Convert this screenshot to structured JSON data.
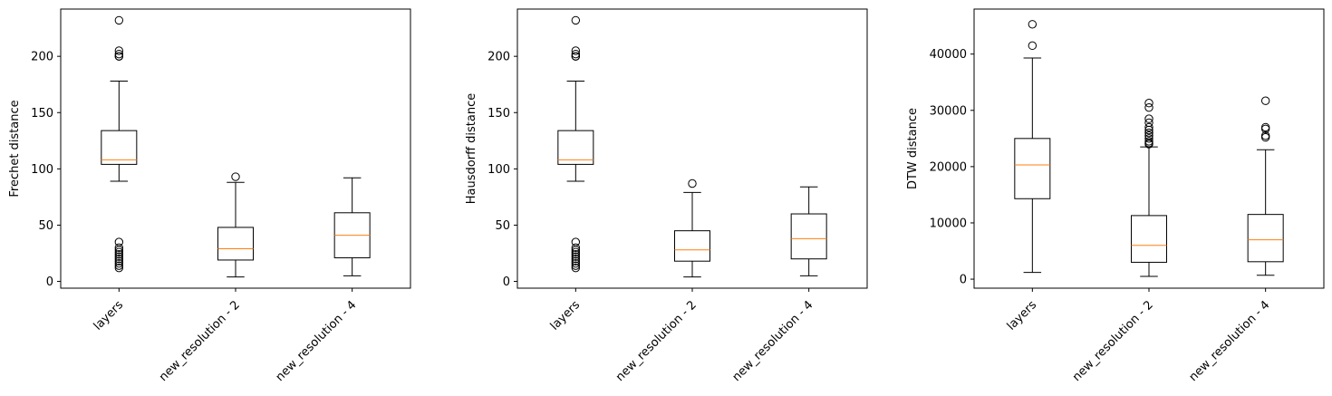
{
  "chart_data": [
    {
      "type": "box",
      "ylabel": "Frechet distance",
      "xlabel": "",
      "title": "",
      "categories": [
        "layers",
        "new_resolution - 2",
        "new_resolution - 4"
      ],
      "ylim": [
        -6,
        242
      ],
      "yticks": [
        0,
        50,
        100,
        150,
        200
      ],
      "grid": false,
      "boxes": [
        {
          "whislo": 89,
          "q1": 104,
          "med": 108,
          "q3": 134,
          "whishi": 178,
          "fliers": [
            232,
            205,
            202,
            200,
            200,
            35,
            30,
            28,
            26,
            24,
            22,
            20,
            18,
            16,
            14,
            12
          ]
        },
        {
          "whislo": 4,
          "q1": 19,
          "med": 29,
          "q3": 48,
          "whishi": 88,
          "fliers": [
            93
          ]
        },
        {
          "whislo": 5,
          "q1": 21,
          "med": 41,
          "q3": 61,
          "whishi": 92,
          "fliers": []
        }
      ]
    },
    {
      "type": "box",
      "ylabel": "Hausdorff distance",
      "xlabel": "",
      "title": "",
      "categories": [
        "layers",
        "new_resolution - 2",
        "new_resolution - 4"
      ],
      "ylim": [
        -6,
        242
      ],
      "yticks": [
        0,
        50,
        100,
        150,
        200
      ],
      "grid": false,
      "boxes": [
        {
          "whislo": 89,
          "q1": 104,
          "med": 108,
          "q3": 134,
          "whishi": 178,
          "fliers": [
            232,
            205,
            202,
            200,
            200,
            35,
            30,
            28,
            26,
            24,
            22,
            20,
            18,
            16,
            14,
            12
          ]
        },
        {
          "whislo": 4,
          "q1": 18,
          "med": 28,
          "q3": 45,
          "whishi": 79,
          "fliers": [
            87
          ]
        },
        {
          "whislo": 5,
          "q1": 20,
          "med": 38,
          "q3": 60,
          "whishi": 84,
          "fliers": []
        }
      ]
    },
    {
      "type": "box",
      "ylabel": "DTW distance",
      "xlabel": "",
      "title": "",
      "categories": [
        "layers",
        "new_resolution - 2",
        "new_resolution - 4"
      ],
      "ylim": [
        -1600,
        48000
      ],
      "yticks": [
        0,
        10000,
        20000,
        30000,
        40000
      ],
      "grid": false,
      "boxes": [
        {
          "whislo": 1200,
          "q1": 14300,
          "med": 20300,
          "q3": 25000,
          "whishi": 39300,
          "fliers": [
            45300,
            41500
          ]
        },
        {
          "whislo": 500,
          "q1": 3000,
          "med": 6000,
          "q3": 11300,
          "whishi": 23500,
          "fliers": [
            31300,
            30500,
            28500,
            27800,
            27000,
            26500,
            26000,
            25500,
            25000,
            24500,
            24200,
            24000
          ]
        },
        {
          "whislo": 700,
          "q1": 3100,
          "med": 7000,
          "q3": 11500,
          "whishi": 23000,
          "fliers": [
            31700,
            27000,
            26700,
            25500,
            25200
          ]
        }
      ]
    }
  ],
  "colors": {
    "box": "#000000",
    "median": "#ff7f0e",
    "background": "#ffffff"
  }
}
